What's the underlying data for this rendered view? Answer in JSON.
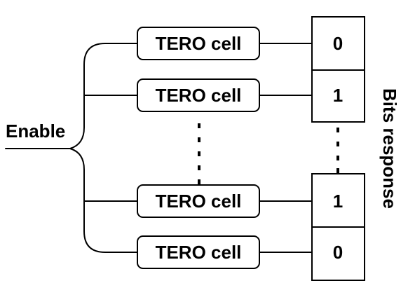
{
  "diagram": {
    "input_label": "Enable",
    "output_label": "Bits response",
    "cells": [
      {
        "label": "TERO cell",
        "bit": "0"
      },
      {
        "label": "TERO cell",
        "bit": "1"
      },
      {
        "label": "TERO cell",
        "bit": "1"
      },
      {
        "label": "TERO cell",
        "bit": "0"
      }
    ],
    "colors": {
      "stroke": "#000000",
      "background": "#ffffff",
      "text": "#000000"
    }
  }
}
